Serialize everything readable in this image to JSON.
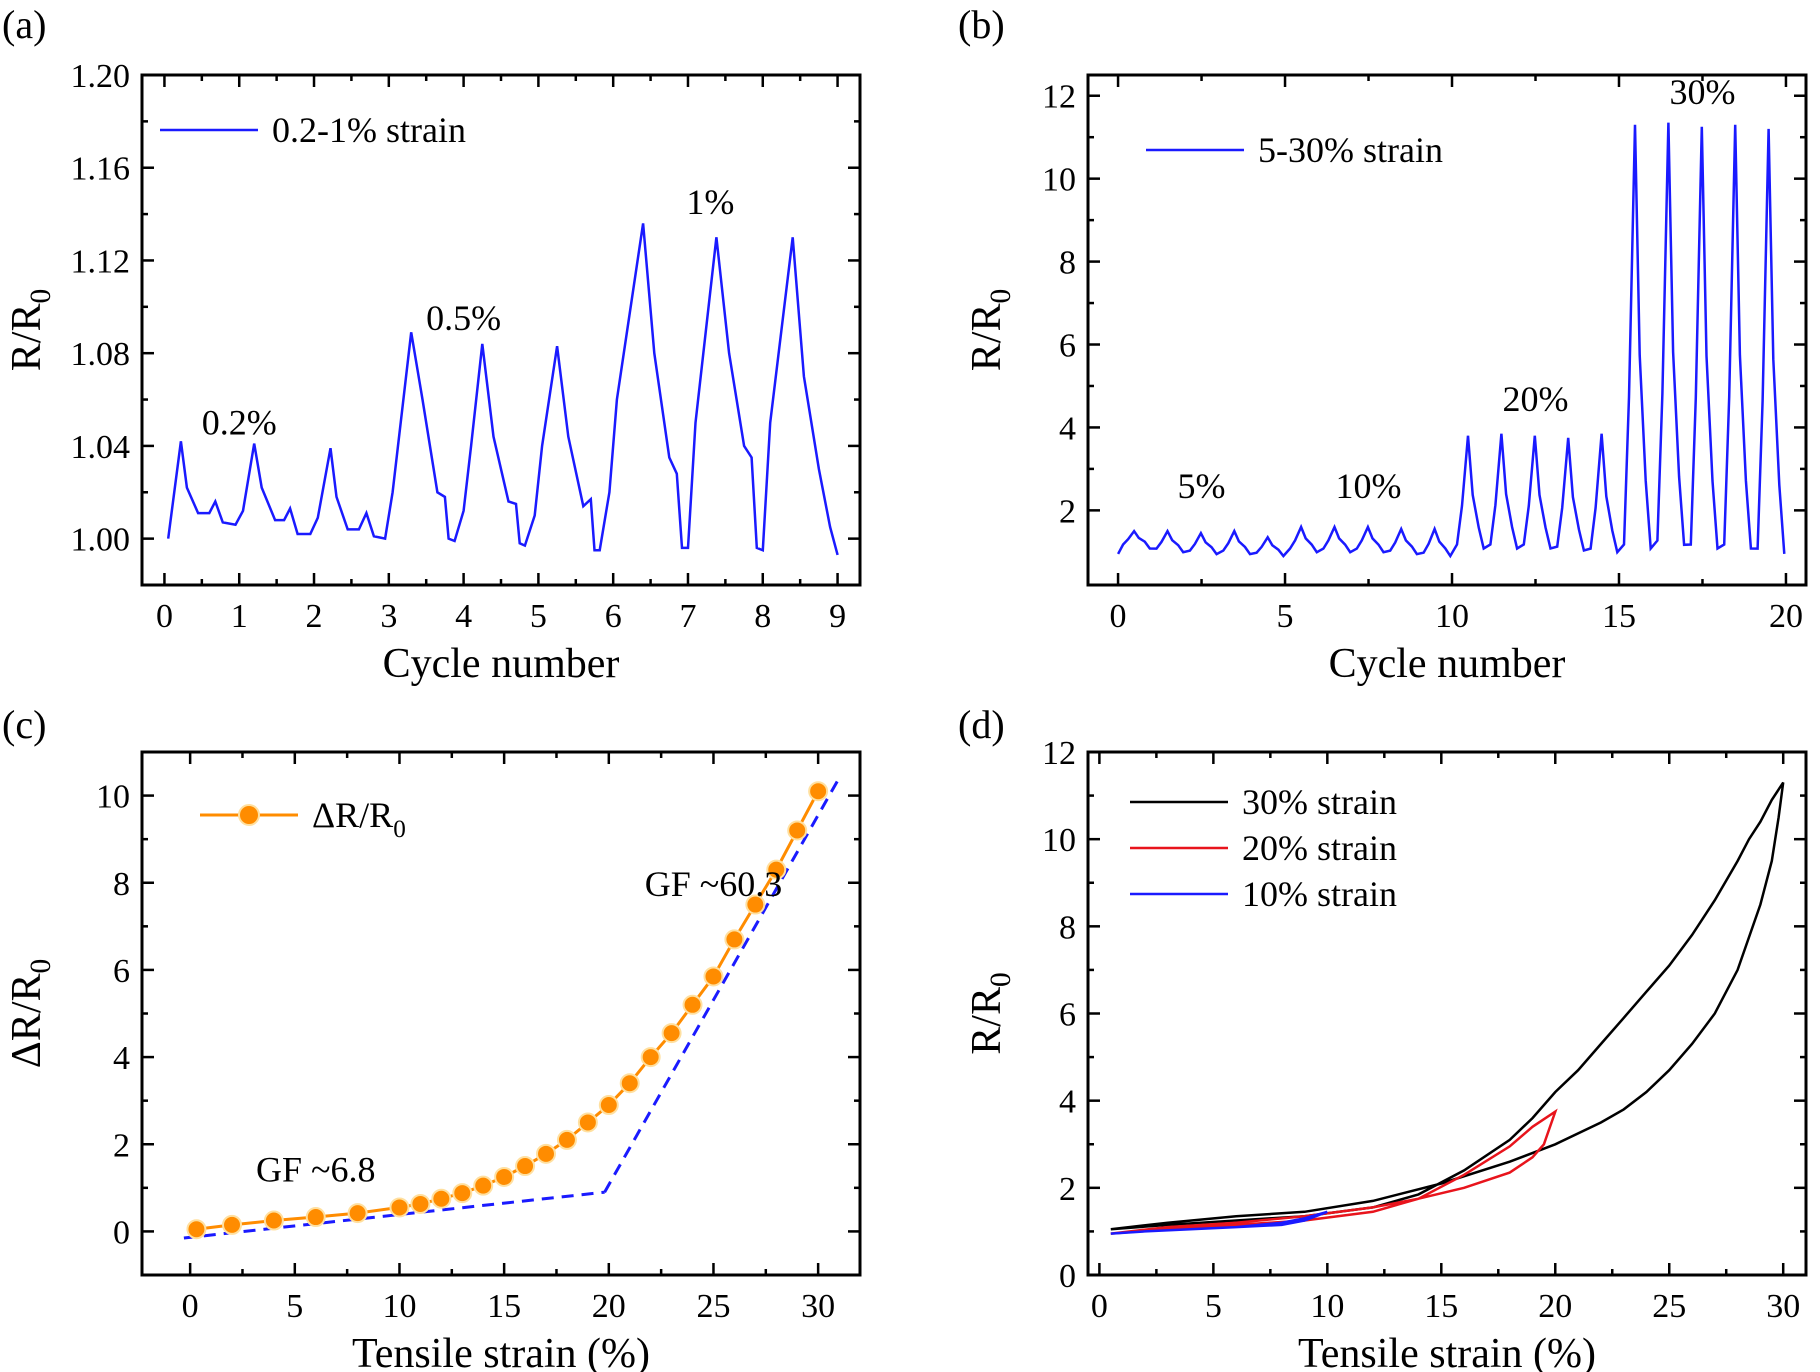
{
  "figure": {
    "panels": [
      "(a)",
      "(b)",
      "(c)",
      "(d)"
    ]
  },
  "chart_data": [
    {
      "id": "a",
      "type": "line",
      "panel_label": "(a)",
      "xlabel": "Cycle number",
      "ylabel": "R/R",
      "ylabel_sub": "0",
      "xlim": [
        -0.3,
        9.3
      ],
      "ylim": [
        0.98,
        1.2
      ],
      "xticks": [
        0,
        1,
        2,
        3,
        4,
        5,
        6,
        7,
        8,
        9
      ],
      "yticks": [
        1.0,
        1.04,
        1.08,
        1.12,
        1.16,
        1.2
      ],
      "ytick_labels": [
        "1.00",
        "1.04",
        "1.08",
        "1.12",
        "1.16",
        "1.20"
      ],
      "legend": [
        {
          "label": "0.2-1% strain",
          "color": "#1a1aff"
        }
      ],
      "annotations": [
        {
          "text": "0.2%",
          "x": 1.0,
          "y": 1.045
        },
        {
          "text": "0.5%",
          "x": 4.0,
          "y": 1.09
        },
        {
          "text": "1%",
          "x": 7.3,
          "y": 1.14
        }
      ],
      "series": [
        {
          "name": "0.2-1% strain",
          "color": "#1a1aff",
          "x": [
            0.05,
            0.22,
            0.3,
            0.45,
            0.6,
            0.68,
            0.78,
            0.95,
            1.05,
            1.2,
            1.3,
            1.48,
            1.6,
            1.68,
            1.78,
            1.95,
            2.05,
            2.22,
            2.3,
            2.45,
            2.6,
            2.7,
            2.8,
            2.95,
            3.05,
            3.3,
            3.45,
            3.65,
            3.75,
            3.8,
            3.88,
            4.0,
            4.1,
            4.25,
            4.4,
            4.6,
            4.7,
            4.75,
            4.82,
            4.95,
            5.05,
            5.25,
            5.4,
            5.6,
            5.7,
            5.75,
            5.82,
            5.95,
            6.05,
            6.4,
            6.55,
            6.75,
            6.85,
            6.92,
            7.0,
            7.1,
            7.38,
            7.55,
            7.75,
            7.85,
            7.92,
            8.0,
            8.1,
            8.4,
            8.55,
            8.75,
            8.9,
            9.0
          ],
          "y": [
            1.0,
            1.042,
            1.022,
            1.011,
            1.011,
            1.016,
            1.007,
            1.006,
            1.012,
            1.041,
            1.022,
            1.008,
            1.008,
            1.013,
            1.002,
            1.002,
            1.009,
            1.039,
            1.018,
            1.004,
            1.004,
            1.011,
            1.001,
            1.0,
            1.02,
            1.089,
            1.06,
            1.02,
            1.018,
            1.0,
            0.999,
            1.012,
            1.04,
            1.084,
            1.044,
            1.016,
            1.015,
            0.998,
            0.997,
            1.01,
            1.04,
            1.083,
            1.044,
            1.014,
            1.017,
            0.995,
            0.995,
            1.02,
            1.06,
            1.136,
            1.08,
            1.035,
            1.028,
            0.996,
            0.996,
            1.05,
            1.13,
            1.08,
            1.04,
            1.035,
            0.996,
            0.995,
            1.05,
            1.13,
            1.07,
            1.03,
            1.005,
            0.993
          ]
        }
      ]
    },
    {
      "id": "b",
      "type": "line",
      "panel_label": "(b)",
      "xlabel": "Cycle number",
      "ylabel": "R/R",
      "ylabel_sub": "0",
      "xlim": [
        -0.9,
        20.6
      ],
      "ylim": [
        0.2,
        12.5
      ],
      "xticks": [
        0,
        5,
        10,
        15,
        20
      ],
      "yticks": [
        2,
        4,
        6,
        8,
        10,
        12
      ],
      "legend": [
        {
          "label": "5-30% strain",
          "color": "#1a1aff"
        }
      ],
      "annotations": [
        {
          "text": "5%",
          "x": 2.5,
          "y": 2.3
        },
        {
          "text": "10%",
          "x": 7.5,
          "y": 2.3
        },
        {
          "text": "20%",
          "x": 12.5,
          "y": 4.4
        },
        {
          "text": "30%",
          "x": 17.5,
          "y": 11.8
        }
      ],
      "peaks": {
        "cycles": 20,
        "start": 0.95,
        "peak_values": [
          1.5,
          1.5,
          1.45,
          1.5,
          1.35,
          1.6,
          1.6,
          1.6,
          1.55,
          1.55,
          3.8,
          3.85,
          3.8,
          3.75,
          3.85,
          11.3,
          11.35,
          11.25,
          11.3,
          11.2
        ],
        "baseline_values": [
          1.2,
          1.1,
          1.05,
          1.05,
          1.0,
          1.1,
          1.1,
          1.1,
          1.05,
          1.0,
          1.2,
          1.2,
          1.2,
          1.15,
          1.1,
          1.2,
          1.3,
          1.2,
          1.2,
          1.1
        ],
        "end": 0.95
      },
      "series": [
        {
          "name": "5-30% strain",
          "color": "#1a1aff"
        }
      ]
    },
    {
      "id": "c",
      "type": "scatter",
      "panel_label": "(c)",
      "xlabel": "Tensile strain (%)",
      "ylabel": "ΔR/R",
      "ylabel_sub": "0",
      "xlim": [
        -2.3,
        32
      ],
      "ylim": [
        -1.0,
        11.0
      ],
      "xticks": [
        0,
        5,
        10,
        15,
        20,
        25,
        30
      ],
      "yticks": [
        0,
        2,
        4,
        6,
        8,
        10
      ],
      "legend": [
        {
          "label": "ΔR/R",
          "label_sub": "0",
          "color": "#ff8c00"
        }
      ],
      "annotations": [
        {
          "text": "GF ~6.8",
          "x": 6.0,
          "y": 1.15
        },
        {
          "text": "GF ~60.3",
          "x": 25.0,
          "y": 7.7
        }
      ],
      "fit_lines": [
        {
          "name": "GF ~6.8",
          "color": "#1a1aff",
          "x": [
            -0.3,
            19.8
          ],
          "y": [
            -0.15,
            0.9
          ]
        },
        {
          "name": "GF ~60.3",
          "color": "#1a1aff",
          "x": [
            19.8,
            31.0
          ],
          "y": [
            0.9,
            10.4
          ]
        }
      ],
      "series": [
        {
          "name": "ΔR/R0",
          "color": "#ff8c00",
          "x": [
            0.3,
            2,
            4,
            6,
            8,
            10,
            11,
            12,
            13,
            14,
            15,
            16,
            17,
            18,
            19,
            20,
            21,
            22,
            23,
            24,
            25,
            26,
            27,
            28,
            29,
            30
          ],
          "y": [
            0.05,
            0.15,
            0.25,
            0.33,
            0.42,
            0.55,
            0.63,
            0.75,
            0.88,
            1.05,
            1.25,
            1.5,
            1.78,
            2.1,
            2.5,
            2.9,
            3.4,
            4.0,
            4.55,
            5.2,
            5.85,
            6.7,
            7.5,
            8.3,
            9.2,
            10.1
          ]
        }
      ]
    },
    {
      "id": "d",
      "type": "line",
      "panel_label": "(d)",
      "xlabel": "Tensile strain (%)",
      "ylabel": "R/R",
      "ylabel_sub": "0",
      "xlim": [
        -0.5,
        31
      ],
      "ylim": [
        0,
        12
      ],
      "xticks": [
        0,
        5,
        10,
        15,
        20,
        25,
        30
      ],
      "yticks": [
        0,
        2,
        4,
        6,
        8,
        10,
        12
      ],
      "legend": [
        {
          "label": "30% strain",
          "color": "#000000"
        },
        {
          "label": "20% strain",
          "color": "#e8141c"
        },
        {
          "label": "10% strain",
          "color": "#1a1aff"
        }
      ],
      "series": [
        {
          "name": "30% strain",
          "color": "#000000",
          "x": [
            0.5,
            3,
            6,
            9,
            12,
            14,
            16,
            18,
            19,
            20,
            21,
            22,
            23,
            24,
            25,
            26,
            27,
            28,
            28.5,
            29,
            29.5,
            30,
            29.8,
            29.5,
            29,
            28,
            27,
            26,
            25,
            24,
            23,
            22,
            20,
            18,
            15,
            12,
            9,
            6,
            3,
            0.5
          ],
          "y": [
            1.05,
            1.15,
            1.25,
            1.35,
            1.55,
            1.85,
            2.4,
            3.1,
            3.6,
            4.2,
            4.7,
            5.3,
            5.9,
            6.5,
            7.1,
            7.8,
            8.6,
            9.5,
            10.0,
            10.4,
            10.9,
            11.3,
            10.5,
            9.5,
            8.5,
            7.0,
            6.0,
            5.3,
            4.7,
            4.2,
            3.8,
            3.5,
            3.0,
            2.6,
            2.1,
            1.7,
            1.45,
            1.35,
            1.2,
            1.05
          ]
        },
        {
          "name": "20% strain",
          "color": "#e8141c",
          "x": [
            0.5,
            3,
            6,
            9,
            12,
            14,
            16,
            18,
            19,
            20,
            19.5,
            19,
            18,
            16,
            14,
            12,
            9,
            6,
            3,
            0.5
          ],
          "y": [
            0.95,
            1.05,
            1.15,
            1.25,
            1.45,
            1.75,
            2.3,
            2.95,
            3.4,
            3.75,
            3.0,
            2.7,
            2.35,
            2.0,
            1.75,
            1.55,
            1.35,
            1.2,
            1.1,
            0.95
          ]
        },
        {
          "name": "10% strain",
          "color": "#1a1aff",
          "x": [
            0.5,
            2,
            4,
            6,
            8,
            9,
            10,
            9.5,
            9,
            8,
            6,
            4,
            2,
            0.5
          ],
          "y": [
            0.95,
            1.0,
            1.05,
            1.1,
            1.2,
            1.3,
            1.45,
            1.35,
            1.25,
            1.15,
            1.1,
            1.05,
            1.0,
            0.95
          ]
        }
      ]
    }
  ]
}
